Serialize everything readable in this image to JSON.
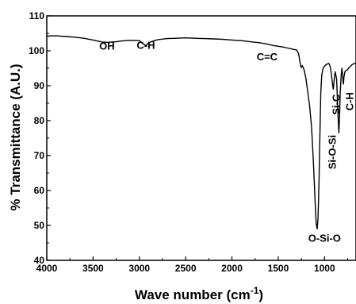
{
  "chart_data": {
    "type": "line",
    "title": "",
    "xlabel": "Wave number (cm",
    "xlabel_sup": "-1",
    "xlabel_close": ")",
    "ylabel": "% Transmittance (A.U.)",
    "xlim": [
      4000,
      660
    ],
    "ylim": [
      40,
      110
    ],
    "x_ticks": [
      4000,
      3500,
      3000,
      2500,
      2000,
      1500,
      1000
    ],
    "y_ticks": [
      40,
      50,
      60,
      70,
      80,
      90,
      100,
      110
    ],
    "grid": false,
    "series": [
      {
        "points": [
          [
            4000,
            104.2
          ],
          [
            3900,
            104.3
          ],
          [
            3800,
            104.1
          ],
          [
            3700,
            103.9
          ],
          [
            3600,
            103.6
          ],
          [
            3500,
            103.1
          ],
          [
            3450,
            102.8
          ],
          [
            3400,
            102.5
          ],
          [
            3350,
            102.4
          ],
          [
            3300,
            102.5
          ],
          [
            3250,
            102.6
          ],
          [
            3200,
            102.8
          ],
          [
            3100,
            103.0
          ],
          [
            3000,
            102.9
          ],
          [
            2960,
            102.0
          ],
          [
            2930,
            101.5
          ],
          [
            2900,
            102.3
          ],
          [
            2850,
            102.8
          ],
          [
            2800,
            103.2
          ],
          [
            2700,
            103.5
          ],
          [
            2600,
            103.6
          ],
          [
            2500,
            103.7
          ],
          [
            2400,
            103.6
          ],
          [
            2300,
            103.5
          ],
          [
            2200,
            103.4
          ],
          [
            2100,
            103.3
          ],
          [
            2000,
            103.1
          ],
          [
            1900,
            102.9
          ],
          [
            1800,
            102.6
          ],
          [
            1700,
            102.3
          ],
          [
            1650,
            102.1
          ],
          [
            1600,
            101.8
          ],
          [
            1550,
            101.5
          ],
          [
            1500,
            101.3
          ],
          [
            1450,
            101.1
          ],
          [
            1400,
            100.8
          ],
          [
            1350,
            100.5
          ],
          [
            1300,
            100.2
          ],
          [
            1280,
            99.2
          ],
          [
            1260,
            96.0
          ],
          [
            1250,
            95.2
          ],
          [
            1240,
            95.8
          ],
          [
            1220,
            94.5
          ],
          [
            1200,
            92.0
          ],
          [
            1180,
            88.0
          ],
          [
            1160,
            84.0
          ],
          [
            1140,
            78.0
          ],
          [
            1120,
            68.0
          ],
          [
            1100,
            56.0
          ],
          [
            1090,
            50.5
          ],
          [
            1080,
            49.0
          ],
          [
            1070,
            52.0
          ],
          [
            1060,
            62.0
          ],
          [
            1050,
            76.0
          ],
          [
            1040,
            88.0
          ],
          [
            1030,
            93.0
          ],
          [
            1015,
            95.0
          ],
          [
            1000,
            95.6
          ],
          [
            985,
            96.0
          ],
          [
            970,
            96.2
          ],
          [
            955,
            96.4
          ],
          [
            945,
            96.0
          ],
          [
            935,
            95.0
          ],
          [
            925,
            93.0
          ],
          [
            912,
            90.0
          ],
          [
            905,
            89.0
          ],
          [
            895,
            92.0
          ],
          [
            885,
            94.0
          ],
          [
            870,
            92.0
          ],
          [
            860,
            86.0
          ],
          [
            852,
            80.0
          ],
          [
            845,
            76.5
          ],
          [
            838,
            81.0
          ],
          [
            830,
            88.0
          ],
          [
            820,
            93.0
          ],
          [
            812,
            95.0
          ],
          [
            805,
            93.0
          ],
          [
            800,
            91.0
          ],
          [
            795,
            90.5
          ],
          [
            790,
            92.5
          ],
          [
            780,
            94.0
          ],
          [
            770,
            94.3
          ],
          [
            755,
            94.5
          ],
          [
            740,
            95.0
          ],
          [
            725,
            95.4
          ],
          [
            705,
            96.0
          ],
          [
            690,
            96.2
          ],
          [
            675,
            96.4
          ],
          [
            660,
            96.4
          ]
        ]
      }
    ],
    "annotations": [
      {
        "text": "OH",
        "x": 3350,
        "y": 100.3
      },
      {
        "text": "C-H",
        "x": 2930,
        "y": 100.6
      },
      {
        "text": "C=C",
        "x": 1620,
        "y": 97.3
      },
      {
        "text": "O-Si-O",
        "x": 1000,
        "y": 45.3
      },
      {
        "text": "Si-O-Si",
        "x": 880,
        "y": 71.0,
        "rotate": -90
      },
      {
        "text": "Si-C",
        "x": 835,
        "y": 84.6,
        "rotate": -90
      },
      {
        "text": "C-H",
        "x": 692,
        "y": 85.5,
        "rotate": -90
      }
    ]
  }
}
